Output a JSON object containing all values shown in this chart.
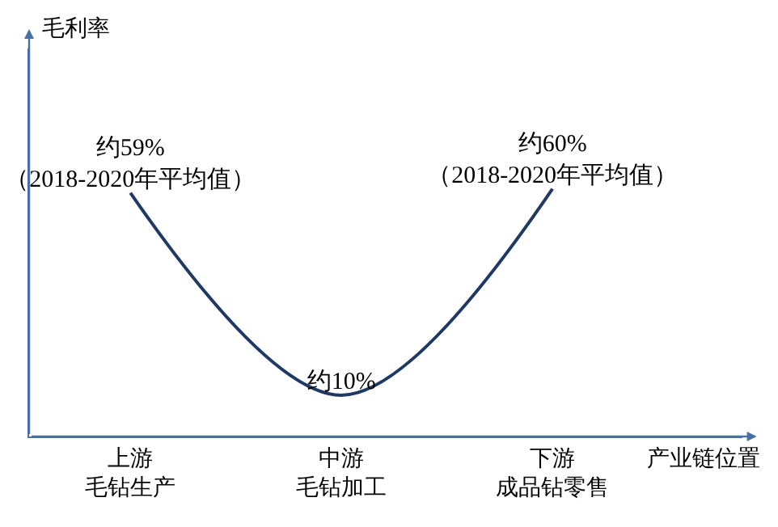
{
  "chart_data": {
    "type": "line",
    "ylabel": "毛利率",
    "xlabel": "产业链位置",
    "categories": [
      "上游毛钻生产",
      "中游毛钻加工",
      "下游成品钻零售"
    ],
    "series": [
      {
        "color": "#1f3864",
        "values": [
          59,
          10,
          60
        ],
        "value_labels": [
          "约59%\n（2018-2020年平均值）",
          "约10%",
          "约60%\n（2018-2020年平均值）"
        ]
      }
    ],
    "ylim": [
      0,
      94
    ],
    "tick_labels": "x",
    "grid": false,
    "marker": "none",
    "line_style": "solid"
  }
}
